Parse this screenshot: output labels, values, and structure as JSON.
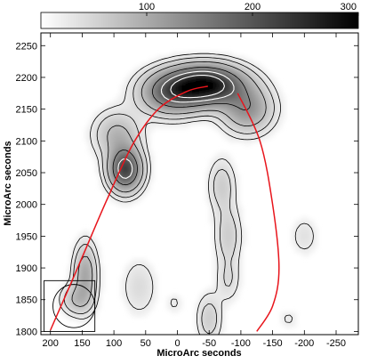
{
  "chart_data": {
    "type": "heatmap",
    "title": "",
    "xlabel": "MicroArc seconds",
    "ylabel": "MicroArc seconds",
    "xlim": [
      215,
      -285
    ],
    "ylim": [
      1795,
      2270
    ],
    "xticks": [
      200,
      150,
      100,
      50,
      0,
      -50,
      -100,
      -150,
      -200,
      -250
    ],
    "xtick_labels": [
      "200",
      "150",
      "100",
      "50",
      "0",
      "-50",
      "-100",
      "-150",
      "-200",
      "-250"
    ],
    "yticks": [
      1800,
      1850,
      1900,
      1950,
      2000,
      2050,
      2100,
      2150,
      2200,
      2250
    ],
    "ytick_labels": [
      "1800",
      "1850",
      "1900",
      "1950",
      "2000",
      "2050",
      "2100",
      "2150",
      "2200",
      "2250"
    ],
    "colorbar": {
      "colormap": "grayscale (white to black)",
      "range": [
        0,
        300
      ],
      "ticks": [
        100,
        200,
        300
      ],
      "tick_labels": [
        "100",
        "200",
        "300"
      ],
      "orientation": "horizontal",
      "position": "top"
    },
    "contour_levels_approx": [
      15,
      30,
      60,
      120,
      180,
      240
    ],
    "components": [
      {
        "x": -45,
        "y": 2188,
        "peak": 300
      },
      {
        "x": 10,
        "y": 2175,
        "peak": 150
      },
      {
        "x": -110,
        "y": 2150,
        "peak": 110
      },
      {
        "x": 82,
        "y": 2055,
        "peak": 220
      },
      {
        "x": 95,
        "y": 2110,
        "peak": 70
      },
      {
        "x": -70,
        "y": 2030,
        "peak": 45
      },
      {
        "x": -80,
        "y": 1950,
        "peak": 45
      },
      {
        "x": -80,
        "y": 1880,
        "peak": 30
      },
      {
        "x": 145,
        "y": 1890,
        "peak": 90
      },
      {
        "x": 160,
        "y": 1850,
        "peak": 55
      },
      {
        "x": 60,
        "y": 1870,
        "peak": 30
      },
      {
        "x": -50,
        "y": 1820,
        "peak": 45
      },
      {
        "x": -200,
        "y": 1950,
        "peak": 25
      },
      {
        "x": 5,
        "y": 1845,
        "peak": 18
      },
      {
        "x": -175,
        "y": 1820,
        "peak": 18
      }
    ],
    "overlay_curves": [
      {
        "type": "line",
        "color": "#e8141b",
        "x": [
          200,
          155,
          112,
          70,
          30,
          -15,
          -48
        ],
        "y": [
          1802,
          1905,
          2005,
          2095,
          2150,
          2178,
          2186
        ]
      },
      {
        "type": "line",
        "color": "#e8141b",
        "x": [
          -95,
          -130,
          -150,
          -160,
          -150,
          -125
        ],
        "y": [
          2175,
          2100,
          2000,
          1900,
          1840,
          1800
        ]
      }
    ],
    "overlay_shapes": [
      {
        "type": "box",
        "x": [
          210,
          130
        ],
        "y": [
          1800,
          1880
        ],
        "color": "#000000"
      },
      {
        "type": "ellipse",
        "center": [
          163,
          1840
        ],
        "radius_x": 33,
        "radius_y": 34,
        "color": "#000000"
      }
    ]
  }
}
